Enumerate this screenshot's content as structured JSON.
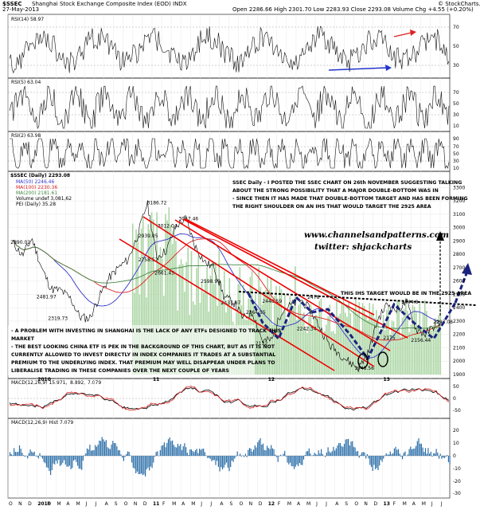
{
  "header": {
    "symbol": "$SSEC",
    "name": "Shanghai Stock Exchange Composite Index (EOD) INDX",
    "date": "27-May-2013",
    "quote": "Open 2286.66  High 2301.70  Low 2283.93  Close 2293.08  Volume  Chg +4.55 (+0.20%)",
    "credit": "© StockCharts.com"
  },
  "panels": {
    "rsi14": {
      "label": "RSI(14) 58.97",
      "ticks": [
        "70",
        "50",
        "30"
      ]
    },
    "rsi5": {
      "label": "RSI(5) 63.04",
      "ticks": [
        "70",
        "50",
        "30",
        "10"
      ]
    },
    "rsi2": {
      "label": "RSI(2) 63.98",
      "ticks": [
        "90",
        "70",
        "50",
        "30",
        "10"
      ]
    },
    "macd": {
      "label_a": "MACD(12,26,9) 15.971,",
      "label_b": "8.892,",
      "label_c": "7.079",
      "ticks": [
        "50",
        "0",
        "-50"
      ]
    },
    "hist": {
      "label": "MACD(12,26,9) Hist 7.079",
      "ticks": [
        "20",
        "10",
        "0",
        "-10",
        "-20",
        "-30"
      ]
    }
  },
  "price_legend": {
    "title": "$SSEC (Daily) 2293.08",
    "items": [
      "MA(50) 2246.46",
      "MA(100) 2230.36",
      "MA(200) 2181.61",
      "Volume undef 3,081,62",
      "PEI (Daily) 35.28"
    ]
  },
  "annotations": {
    "top_note": [
      "SSEC Daily - I POSTED THE SSEC CHART ON 26th NOVEMBER SUGGESTING TALKING",
      "ABOUT THE STRONG POSSIBILITY THAT A MAJOR DOUBLE-BOTTOM WAS IN",
      "- SINCE THEN IT HAS MADE THAT DOUBLE-BOTTOM TARGET AND HAS BEEN FORMING",
      "THE RIGHT SHOULDER ON AN IHS THAT WOULD TARGET THE 2925 AREA"
    ],
    "website": "www.channelsandpatterns.com",
    "twitter": "twitter: shjackcharts",
    "ihs_target": "THIS IHS TARGET WOULD BE IN THE 2925 AREA",
    "problem_note": [
      "- A PROBLEM WITH INVESTING IN SHANGHAI IS THE LACK OF ANY ETFs DESIGNED TO TRACK THIS",
      "MARKET",
      "- THE BEST LOOKING CHINA ETF IS PEK IN THE BACKGROUND OF THIS CHART, BUT AS IT IS NOT",
      "CURRENTLY ALLOWED TO INVEST DIRECTLY IN INDEX COMPANIES IT TRADES AT A SUBSTANTIAL",
      "PREMIUM TO THE UNDERLYING INDEX. THAT PREMIUM MAY WELL DISAPPEAR UNDER PLANS TO",
      "LIBERALISE TRADING IN THESE COMPANIES OVER THE NEXT COUPLE OF YEARS"
    ]
  },
  "colors": {
    "price": "#000000",
    "ma50": "#3333cc",
    "ma100": "#dd2222",
    "ma200": "#448844",
    "volume": "#a8d4a0",
    "trend": "#ee0000",
    "pattern": "#1a237e",
    "histogram": "#2b6ea8"
  },
  "chart_data": {
    "type": "line",
    "x_months": [
      "O",
      "N",
      "D",
      "2010",
      "F",
      "M",
      "A",
      "M",
      "J",
      "J",
      "A",
      "S",
      "O",
      "N",
      "D",
      "11",
      "F",
      "M",
      "A",
      "M",
      "J",
      "J",
      "A",
      "S",
      "O",
      "N",
      "D",
      "12",
      "F",
      "M",
      "A",
      "M",
      "J",
      "J",
      "A",
      "S",
      "O",
      "N",
      "D",
      "13",
      "F",
      "M",
      "A",
      "M",
      "J",
      "J"
    ],
    "y_ticks": [
      3300,
      3200,
      3100,
      3000,
      2900,
      2800,
      2700,
      2600,
      2500,
      2400,
      2300,
      2200,
      2100,
      2000,
      1900
    ],
    "ylim": [
      1900,
      3380
    ],
    "key_prices": [
      {
        "label": "3186.72",
        "x": 14.8,
        "y": 3187
      },
      {
        "label": "3067.46",
        "x": 18.1,
        "y": 3067
      },
      {
        "label": "3012.04",
        "x": 15.9,
        "y": 3012
      },
      {
        "label": "2939.05",
        "x": 13.9,
        "y": 2939
      },
      {
        "label": "2890.02",
        "x": 0.6,
        "y": 2890
      },
      {
        "label": "2758.52",
        "x": 13.9,
        "y": 2759
      },
      {
        "label": "2661.45",
        "x": 15.6,
        "y": 2661
      },
      {
        "label": "2598.99",
        "x": 20.4,
        "y": 2599
      },
      {
        "label": "2478",
        "x": 31.5,
        "y": 2478
      },
      {
        "label": "2481.97",
        "x": 3.3,
        "y": 2482
      },
      {
        "label": "2448.59",
        "x": 26.8,
        "y": 2448
      },
      {
        "label": "2437.87",
        "x": 22.5,
        "y": 2438
      },
      {
        "label": "2444.8",
        "x": 41.3,
        "y": 2444
      },
      {
        "label": "2364.55",
        "x": 25.1,
        "y": 2365
      },
      {
        "label": "2242.34",
        "x": 30.4,
        "y": 2242
      },
      {
        "label": "2319.73",
        "x": 4.5,
        "y": 2320
      },
      {
        "label": "2132",
        "x": 26.1,
        "y": 2132
      },
      {
        "label": "1948.56",
        "x": 36.4,
        "y": 1949
      },
      {
        "label": "2175",
        "x": 39.4,
        "y": 2175
      },
      {
        "label": "2156.44",
        "x": 42.3,
        "y": 2156
      },
      {
        "label": "2293.08",
        "x": 44.6,
        "y": 2293
      }
    ],
    "series": [
      {
        "values": [
          [
            0,
            2890
          ],
          [
            1,
            2790
          ],
          [
            2,
            2920
          ],
          [
            3,
            2700
          ],
          [
            4,
            2540
          ],
          [
            5,
            2530
          ],
          [
            6,
            2470
          ],
          [
            7,
            2330
          ],
          [
            8,
            2320
          ],
          [
            9,
            2480
          ],
          [
            10,
            2620
          ],
          [
            11,
            2700
          ],
          [
            12,
            2760
          ],
          [
            13,
            2940
          ],
          [
            14,
            3187
          ],
          [
            15,
            2780
          ],
          [
            16,
            2830
          ],
          [
            17,
            3012
          ],
          [
            18,
            3067
          ],
          [
            19,
            2860
          ],
          [
            20,
            2740
          ],
          [
            21,
            2700
          ],
          [
            22,
            2480
          ],
          [
            23,
            2440
          ],
          [
            24,
            2320
          ],
          [
            25,
            2365
          ],
          [
            26,
            2150
          ],
          [
            27,
            2160
          ],
          [
            28,
            2380
          ],
          [
            29,
            2420
          ],
          [
            30,
            2460
          ],
          [
            31,
            2380
          ],
          [
            32,
            2250
          ],
          [
            33,
            2120
          ],
          [
            34,
            2060
          ],
          [
            35,
            1995
          ],
          [
            36,
            1949
          ],
          [
            37,
            2060
          ],
          [
            38,
            2310
          ],
          [
            39,
            2430
          ],
          [
            40,
            2380
          ],
          [
            41,
            2444
          ],
          [
            42,
            2240
          ],
          [
            43,
            2200
          ],
          [
            44,
            2275
          ],
          [
            44.6,
            2293
          ]
        ]
      }
    ]
  }
}
